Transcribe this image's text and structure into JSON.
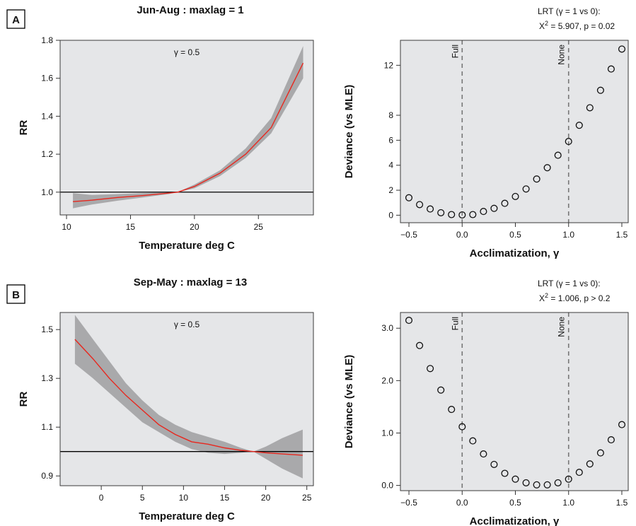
{
  "panels": [
    {
      "label": "A",
      "left_title": "Jun-Aug : maxlag = 1",
      "lrt_line1": "LRT (γ = 1 vs 0):",
      "lrt_line2_pre": "X",
      "lrt_line2_sup": "2",
      "lrt_line2_post": " = 5.907, p = 0.02"
    },
    {
      "label": "B",
      "left_title": "Sep-May : maxlag = 13",
      "lrt_line1": "LRT (γ = 1 vs 0):",
      "lrt_line2_pre": "X",
      "lrt_line2_sup": "2",
      "lrt_line2_post": " = 1.006, p > 0.2"
    }
  ],
  "chart_data": [
    {
      "id": "A-rr",
      "type": "line",
      "title": "Jun-Aug : maxlag = 1",
      "xlabel": "Temperature deg C",
      "ylabel": "RR",
      "annotation": "γ = 0.5",
      "xlim": [
        9.5,
        29.3
      ],
      "ylim": [
        0.88,
        1.8
      ],
      "xticks": [
        10,
        15,
        20,
        25
      ],
      "xtick_labels": [
        "10",
        "15",
        "20",
        "25"
      ],
      "yticks": [
        1.0,
        1.2,
        1.4,
        1.6,
        1.8
      ],
      "ytick_labels": [
        "1.0",
        "1.2",
        "1.4",
        "1.6",
        "1.8"
      ],
      "reference_line": 1.0,
      "series": [
        {
          "x": [
            10.5,
            12,
            14,
            16,
            18,
            18.7,
            20,
            22,
            24,
            26,
            28.5
          ],
          "y": [
            0.95,
            0.958,
            0.972,
            0.982,
            0.995,
            1.0,
            1.03,
            1.1,
            1.2,
            1.34,
            1.68
          ],
          "lower": [
            0.915,
            0.935,
            0.955,
            0.972,
            0.99,
            1.0,
            1.02,
            1.085,
            1.18,
            1.31,
            1.6
          ],
          "upper": [
            0.995,
            0.985,
            0.99,
            0.995,
            1.0,
            1.0,
            1.04,
            1.115,
            1.23,
            1.39,
            1.77
          ]
        }
      ]
    },
    {
      "id": "A-dev",
      "type": "scatter",
      "xlabel": "Acclimatization, γ",
      "ylabel": "Deviance (vs MLE)",
      "xlim": [
        -0.58,
        1.56
      ],
      "ylim": [
        -0.6,
        14
      ],
      "xticks": [
        -0.5,
        0,
        0.5,
        1,
        1.5
      ],
      "xtick_labels": [
        "−0.5",
        "0.0",
        "0.5",
        "1.0",
        "1.5"
      ],
      "yticks": [
        0,
        2,
        4,
        6,
        8,
        12
      ],
      "ytick_labels": [
        "0",
        "2",
        "4",
        "6",
        "8",
        "12"
      ],
      "vlines": [
        {
          "x": 0,
          "label": "Full"
        },
        {
          "x": 1,
          "label": "None"
        }
      ],
      "x": [
        -0.5,
        -0.4,
        -0.3,
        -0.2,
        -0.1,
        0,
        0.1,
        0.2,
        0.3,
        0.4,
        0.5,
        0.6,
        0.7,
        0.8,
        0.9,
        1.0,
        1.1,
        1.2,
        1.3,
        1.4,
        1.5
      ],
      "y": [
        1.4,
        0.85,
        0.5,
        0.2,
        0.05,
        0.02,
        0.05,
        0.3,
        0.55,
        0.95,
        1.5,
        2.1,
        2.9,
        3.8,
        4.8,
        5.9,
        7.2,
        8.6,
        10.0,
        11.7,
        13.3
      ]
    },
    {
      "id": "B-rr",
      "type": "line",
      "title": "Sep-May : maxlag = 13",
      "xlabel": "Temperature deg C",
      "ylabel": "RR",
      "annotation": "γ = 0.5",
      "xlim": [
        -5,
        25.8
      ],
      "ylim": [
        0.86,
        1.57
      ],
      "xticks": [
        0,
        5,
        10,
        15,
        20,
        25
      ],
      "xtick_labels": [
        "0",
        "5",
        "10",
        "15",
        "20",
        "25"
      ],
      "yticks": [
        0.9,
        1.1,
        1.3,
        1.5
      ],
      "ytick_labels": [
        "0.9",
        "1.1",
        "1.3",
        "1.5"
      ],
      "reference_line": 1.0,
      "series": [
        {
          "x": [
            -3.2,
            -1,
            1,
            3,
            5,
            7,
            9,
            11,
            13,
            15,
            17,
            18.5,
            20,
            22,
            24.5
          ],
          "y": [
            1.46,
            1.38,
            1.3,
            1.23,
            1.17,
            1.11,
            1.07,
            1.04,
            1.03,
            1.015,
            1.005,
            1.0,
            0.995,
            0.99,
            0.985
          ],
          "lower": [
            1.36,
            1.3,
            1.24,
            1.18,
            1.12,
            1.08,
            1.04,
            1.01,
            0.995,
            0.99,
            0.995,
            1.0,
            0.97,
            0.93,
            0.89
          ],
          "upper": [
            1.56,
            1.46,
            1.37,
            1.28,
            1.21,
            1.15,
            1.11,
            1.08,
            1.06,
            1.04,
            1.015,
            1.0,
            1.02,
            1.055,
            1.09
          ]
        }
      ]
    },
    {
      "id": "B-dev",
      "type": "scatter",
      "xlabel": "Acclimatization, γ",
      "ylabel": "Deviance (vs MLE)",
      "xlim": [
        -0.58,
        1.56
      ],
      "ylim": [
        -0.1,
        3.3
      ],
      "xticks": [
        -0.5,
        0,
        0.5,
        1,
        1.5
      ],
      "xtick_labels": [
        "−0.5",
        "0.0",
        "0.5",
        "1.0",
        "1.5"
      ],
      "yticks": [
        0,
        1,
        2,
        3
      ],
      "ytick_labels": [
        "0.0",
        "1.0",
        "2.0",
        "3.0"
      ],
      "vlines": [
        {
          "x": 0,
          "label": "Full"
        },
        {
          "x": 1,
          "label": "None"
        }
      ],
      "x": [
        -0.5,
        -0.4,
        -0.3,
        -0.2,
        -0.1,
        0,
        0.1,
        0.2,
        0.3,
        0.4,
        0.5,
        0.6,
        0.7,
        0.8,
        0.9,
        1.0,
        1.1,
        1.2,
        1.3,
        1.4,
        1.5
      ],
      "y": [
        3.15,
        2.67,
        2.23,
        1.82,
        1.45,
        1.12,
        0.85,
        0.6,
        0.4,
        0.23,
        0.12,
        0.05,
        0.01,
        0.01,
        0.05,
        0.12,
        0.25,
        0.41,
        0.62,
        0.87,
        1.16
      ]
    }
  ]
}
